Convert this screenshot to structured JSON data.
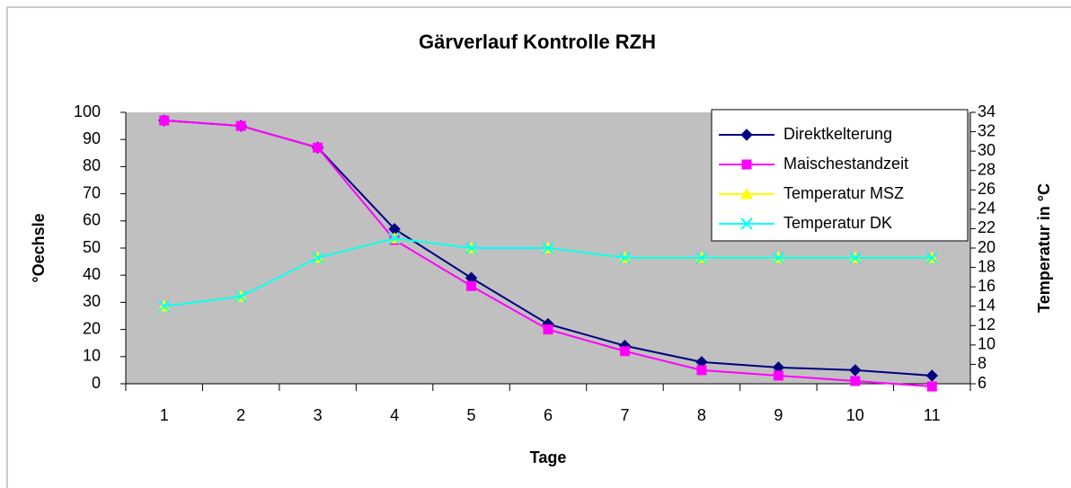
{
  "chart_data": {
    "type": "line",
    "title": "Gärverlauf Kontrolle RZH",
    "x_label": "Tage",
    "y_label": "°Oechsle",
    "y2_label": "Temperatur in °C",
    "categories": [
      "1",
      "2",
      "3",
      "4",
      "5",
      "6",
      "7",
      "8",
      "9",
      "10",
      "11"
    ],
    "ylim": [
      0,
      100
    ],
    "yticks": [
      0,
      10,
      20,
      30,
      40,
      50,
      60,
      70,
      80,
      90,
      100
    ],
    "y2lim": [
      6,
      34
    ],
    "y2ticks": [
      6,
      8,
      10,
      12,
      14,
      16,
      18,
      20,
      22,
      24,
      26,
      28,
      30,
      32,
      34
    ],
    "plot_background": "#c0c0c0",
    "grid": false,
    "legend": "upper right",
    "series": [
      {
        "name": "Direktkelterung",
        "color": "#000080",
        "marker": "diamond",
        "values": [
          97,
          95,
          87,
          57,
          39,
          22,
          14,
          8,
          6,
          5,
          3
        ]
      },
      {
        "name": "Maischestandzeit",
        "color": "#ff00ff",
        "marker": "square",
        "values": [
          97,
          95,
          87,
          53,
          36,
          20,
          12,
          5,
          3,
          1,
          -1
        ]
      },
      {
        "name": "Temperatur MSZ",
        "color": "#ffff00",
        "marker": "triangle",
        "axis": "y2",
        "values": [
          14,
          15,
          19,
          21,
          20,
          20,
          19,
          19,
          19,
          19,
          19
        ]
      },
      {
        "name": "Temperatur DK",
        "color": "#00ffff",
        "marker": "x",
        "axis": "y2",
        "values": [
          14,
          15,
          19,
          21,
          20,
          20,
          19,
          19,
          19,
          19,
          19
        ]
      }
    ]
  }
}
